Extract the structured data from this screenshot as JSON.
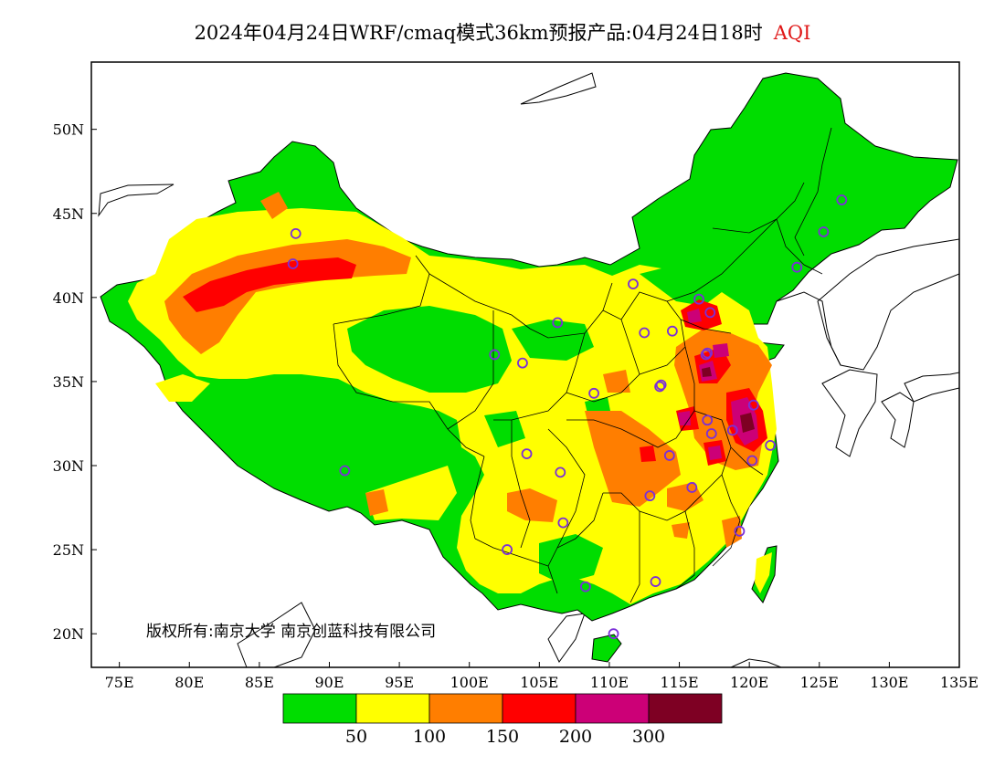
{
  "title": {
    "text": "2024年04月24日WRF/cmaq模式36km预报产品:04月24日18时",
    "variable": "AQI",
    "variable_color": "#e01818"
  },
  "map": {
    "lat_ticks": [
      "50N",
      "45N",
      "40N",
      "35N",
      "30N",
      "25N",
      "20N"
    ],
    "lon_ticks": [
      "75E",
      "80E",
      "85E",
      "90E",
      "95E",
      "100E",
      "105E",
      "110E",
      "115E",
      "120E",
      "125E",
      "130E",
      "135E"
    ],
    "extent": {
      "lon_min": 73,
      "lon_max": 135,
      "lat_min": 18,
      "lat_max": 54
    },
    "ocean_color": "#ffffff"
  },
  "copyright": "版权所有:南京大学 南京创蓝科技有限公司",
  "colorbar": {
    "colors": [
      "#00dd00",
      "#ffff00",
      "#ff7e00",
      "#ff0000",
      "#cc0077",
      "#7e0023"
    ],
    "labels": [
      "50",
      "100",
      "150",
      "200",
      "300"
    ]
  },
  "stations": [
    {
      "lon": 87.6,
      "lat": 43.8
    },
    {
      "lon": 87.4,
      "lat": 42.0
    },
    {
      "lon": 91.1,
      "lat": 29.7
    },
    {
      "lon": 101.8,
      "lat": 36.6
    },
    {
      "lon": 103.8,
      "lat": 36.1
    },
    {
      "lon": 106.3,
      "lat": 38.5
    },
    {
      "lon": 111.7,
      "lat": 40.8
    },
    {
      "lon": 112.5,
      "lat": 37.9
    },
    {
      "lon": 114.5,
      "lat": 38.0
    },
    {
      "lon": 116.4,
      "lat": 39.9
    },
    {
      "lon": 117.2,
      "lat": 39.1
    },
    {
      "lon": 117.0,
      "lat": 36.7
    },
    {
      "lon": 113.6,
      "lat": 34.7
    },
    {
      "lon": 108.9,
      "lat": 34.3
    },
    {
      "lon": 104.1,
      "lat": 30.7
    },
    {
      "lon": 106.5,
      "lat": 29.6
    },
    {
      "lon": 106.7,
      "lat": 26.6
    },
    {
      "lon": 102.7,
      "lat": 25.0
    },
    {
      "lon": 108.3,
      "lat": 22.8
    },
    {
      "lon": 113.3,
      "lat": 23.1
    },
    {
      "lon": 110.3,
      "lat": 20.0
    },
    {
      "lon": 112.9,
      "lat": 28.2
    },
    {
      "lon": 114.3,
      "lat": 30.6
    },
    {
      "lon": 115.9,
      "lat": 28.7
    },
    {
      "lon": 117.3,
      "lat": 31.9
    },
    {
      "lon": 118.8,
      "lat": 32.1
    },
    {
      "lon": 120.2,
      "lat": 30.3
    },
    {
      "lon": 121.5,
      "lat": 31.2
    },
    {
      "lon": 119.3,
      "lat": 26.1
    },
    {
      "lon": 123.4,
      "lat": 41.8
    },
    {
      "lon": 125.3,
      "lat": 43.9
    },
    {
      "lon": 126.6,
      "lat": 45.8
    },
    {
      "lon": 117.0,
      "lat": 32.7
    },
    {
      "lon": 116.9,
      "lat": 36.6
    },
    {
      "lon": 113.7,
      "lat": 34.8
    },
    {
      "lon": 120.3,
      "lat": 33.6
    }
  ]
}
